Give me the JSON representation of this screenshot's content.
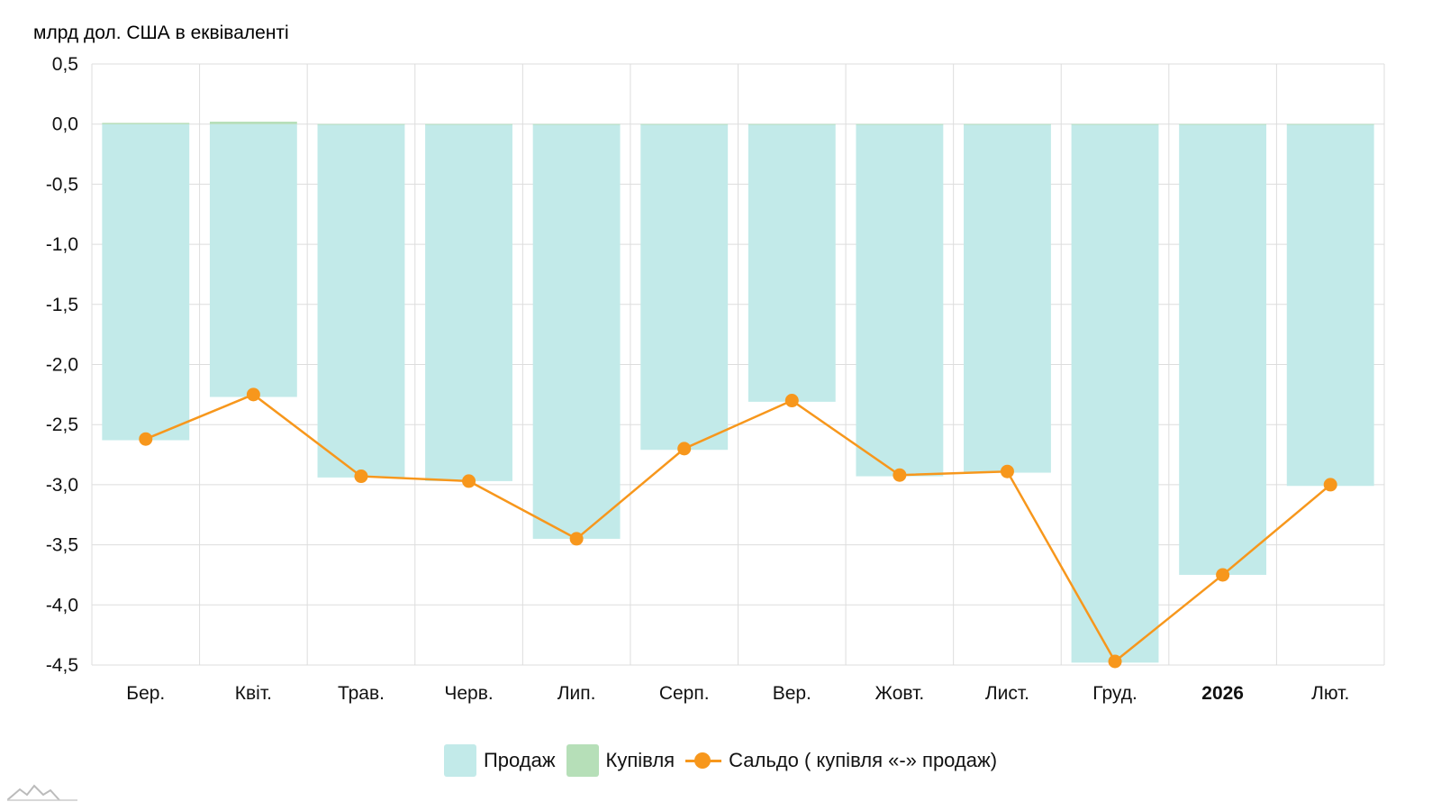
{
  "chart_data": {
    "type": "bar",
    "ylabel": "млрд дол. США в еквіваленті",
    "ylim": [
      -4.5,
      0.5
    ],
    "y_ticks": [
      "0,5",
      "0,0",
      "-0,5",
      "-1,0",
      "-1,5",
      "-2,0",
      "-2,5",
      "-3,0",
      "-3,5",
      "-4,0",
      "-4,5"
    ],
    "y_tick_values": [
      0.5,
      0.0,
      -0.5,
      -1.0,
      -1.5,
      -2.0,
      -2.5,
      -3.0,
      -3.5,
      -4.0,
      -4.5
    ],
    "categories": [
      "Бер.",
      "Квіт.",
      "Трав.",
      "Черв.",
      "Лип.",
      "Серп.",
      "Вер.",
      "Жовт.",
      "Лист.",
      "Груд.",
      "2026",
      "Лют."
    ],
    "bold_categories": [
      "2026"
    ],
    "grid": true,
    "legend_position": "bottom-center",
    "series": [
      {
        "name": "Продаж",
        "kind": "bar",
        "color": "#c2eae9",
        "values": [
          -2.63,
          -2.27,
          -2.94,
          -2.97,
          -3.45,
          -2.71,
          -2.31,
          -2.93,
          -2.9,
          -4.48,
          -3.75,
          -3.01
        ]
      },
      {
        "name": "Купівля",
        "kind": "bar",
        "color": "#b6dfb8",
        "values": [
          0.01,
          0.02,
          0.0,
          0.0,
          0.0,
          0.0,
          0.0,
          0.0,
          0.0,
          0.0,
          0.0,
          0.0
        ]
      },
      {
        "name": "Сальдо ( купівля «-» продаж)",
        "kind": "line",
        "color": "#f7971c",
        "values": [
          -2.62,
          -2.25,
          -2.93,
          -2.97,
          -3.45,
          -2.7,
          -2.3,
          -2.92,
          -2.89,
          -4.47,
          -3.75,
          -3.0
        ]
      }
    ]
  },
  "colors": {
    "grid": "#dddddd",
    "axis": "#bbbbbb"
  },
  "logo_icon": "mountain-logo-icon"
}
